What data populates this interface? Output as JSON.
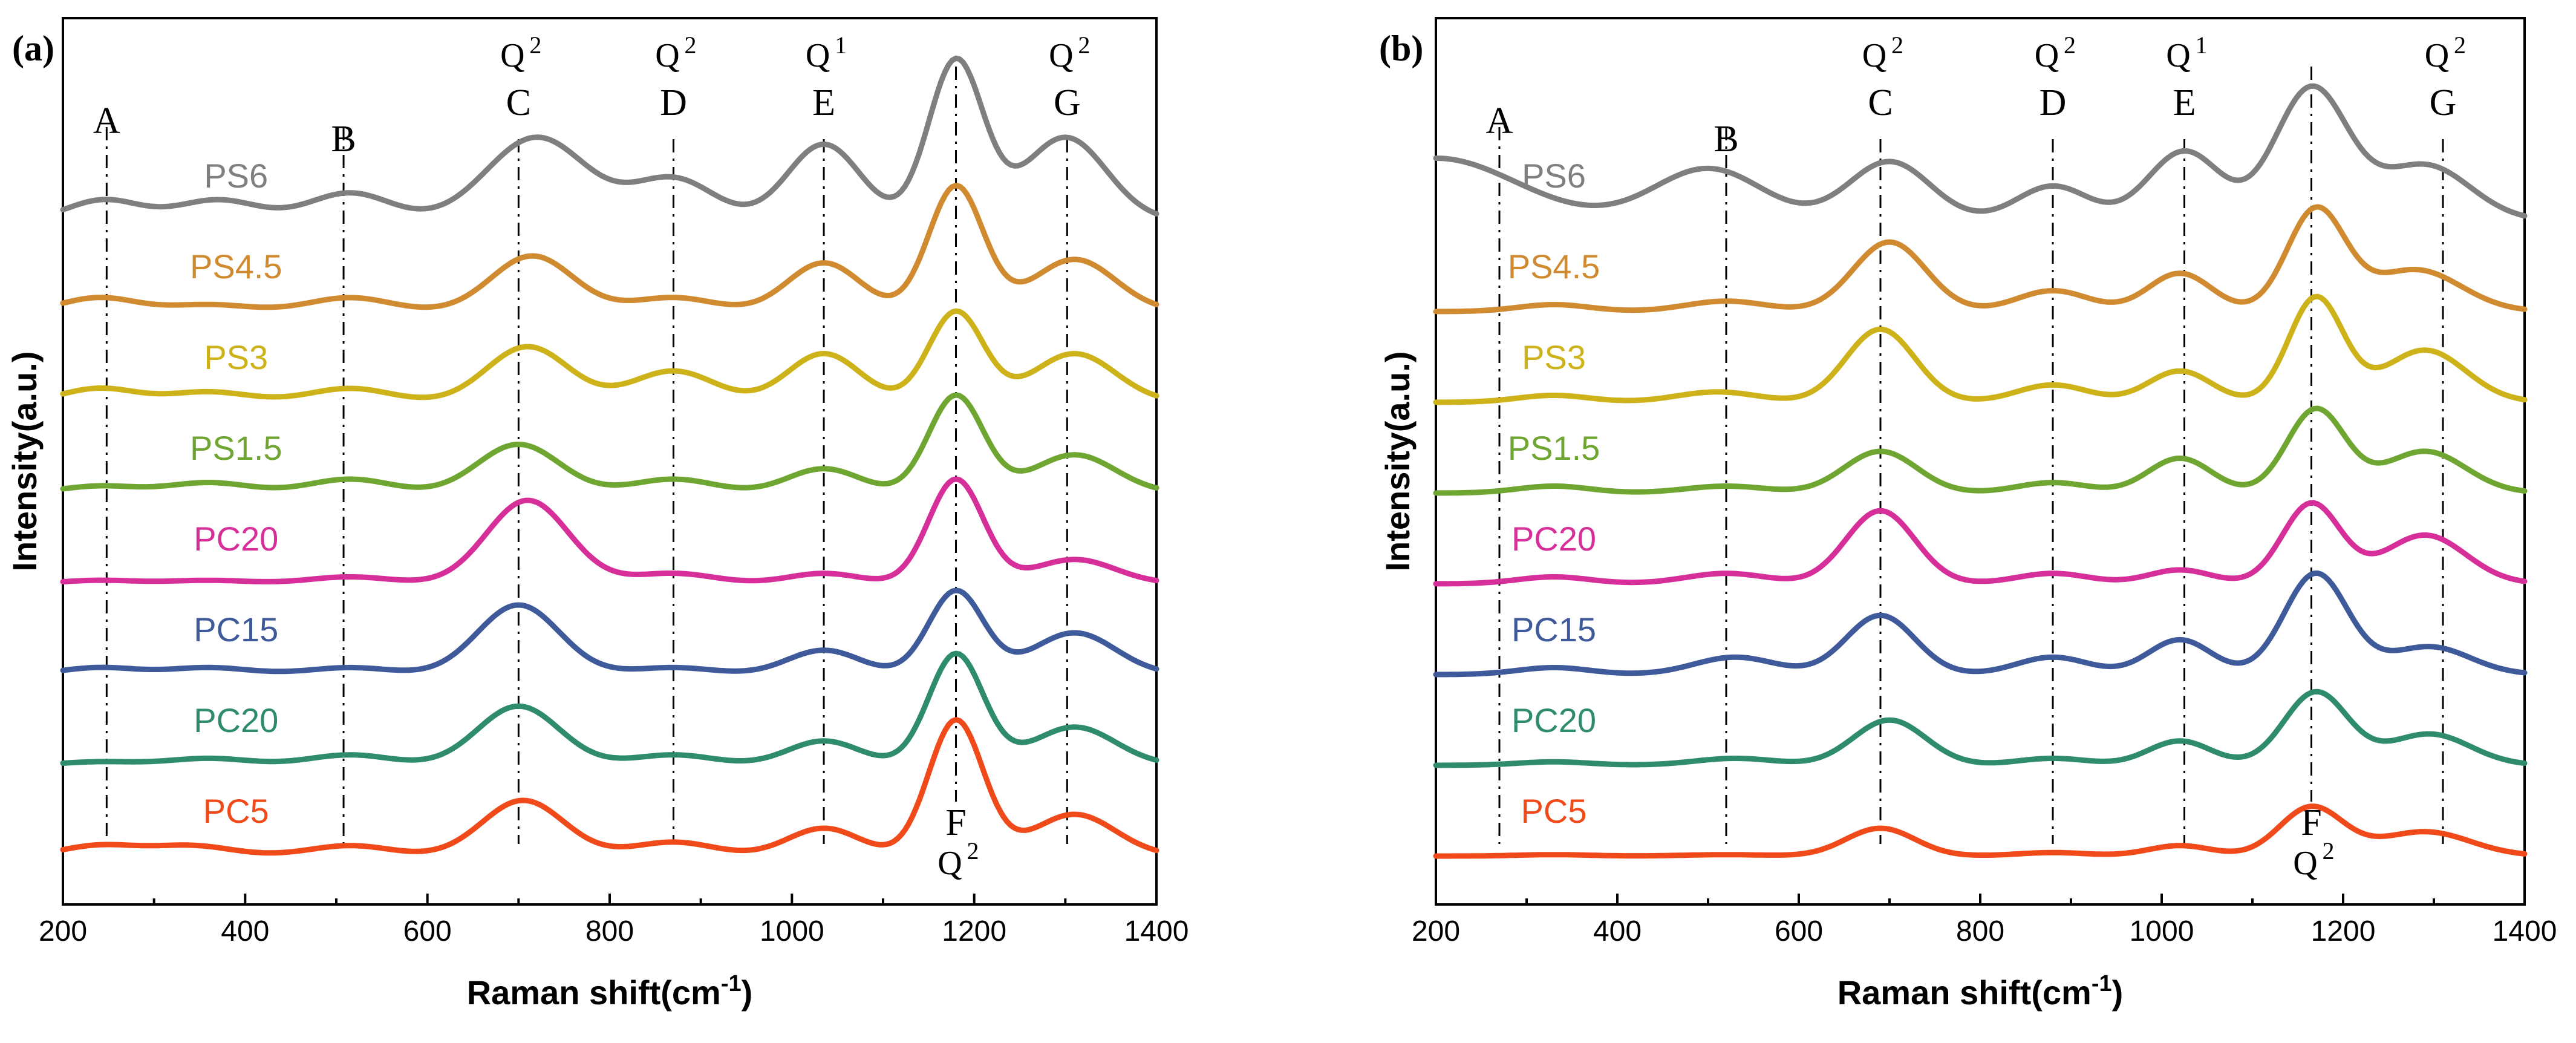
{
  "chart_data": [
    {
      "panel_label": "(a)",
      "type": "line",
      "xlabel": "Raman shift(cm",
      "xlabel_sup": "-1",
      "xlabel_tail": ")",
      "ylabel": "Intensity(a.u.)",
      "xlim": [
        200,
        1400
      ],
      "x_ticks": [
        "200",
        "400",
        "600",
        "800",
        "1000",
        "1200",
        "1400"
      ],
      "y_ticks_shown": false,
      "reference_peaks": [
        {
          "letter": "A",
          "q": "",
          "sup": "",
          "x": 248
        },
        {
          "letter": "B",
          "q": "",
          "sup": "",
          "x": 508
        },
        {
          "letter": "C",
          "q": "Q",
          "sup": "2",
          "x": 700
        },
        {
          "letter": "D",
          "q": "Q",
          "sup": "2",
          "x": 870
        },
        {
          "letter": "E",
          "q": "Q",
          "sup": "1",
          "x": 1035
        },
        {
          "letter": "F",
          "q": "Q",
          "sup": "2",
          "x": 1180,
          "label_below": true
        },
        {
          "letter": "G",
          "q": "Q",
          "sup": "2",
          "x": 1302
        }
      ],
      "series": [
        {
          "name": "PS6",
          "color": "#7f7f7f",
          "baseline": 7.0,
          "label_x": 390,
          "peaks": [
            [
              245,
              0.3,
              40
            ],
            [
              370,
              0.3,
              45
            ],
            [
              515,
              0.4,
              45
            ],
            [
              720,
              1.2,
              55
            ],
            [
              870,
              0.6,
              45
            ],
            [
              1035,
              1.1,
              40
            ],
            [
              1180,
              2.3,
              30
            ],
            [
              1300,
              1.2,
              45
            ]
          ]
        },
        {
          "name": "PS4.5",
          "color": "#d08a30",
          "baseline": 6.0,
          "label_x": 390,
          "peaks": [
            [
              240,
              0.2,
              40
            ],
            [
              360,
              0.1,
              45
            ],
            [
              515,
              0.2,
              45
            ],
            [
              715,
              0.8,
              45
            ],
            [
              870,
              0.2,
              45
            ],
            [
              1035,
              0.7,
              40
            ],
            [
              1180,
              1.8,
              30
            ],
            [
              1310,
              0.75,
              45
            ]
          ]
        },
        {
          "name": "PS3",
          "color": "#cdb21a",
          "baseline": 5.0,
          "label_x": 390,
          "peaks": [
            [
              240,
              0.2,
              40
            ],
            [
              360,
              0.15,
              45
            ],
            [
              515,
              0.2,
              45
            ],
            [
              710,
              0.8,
              45
            ],
            [
              870,
              0.45,
              45
            ],
            [
              1035,
              0.7,
              40
            ],
            [
              1180,
              1.3,
              30
            ],
            [
              1310,
              0.7,
              45
            ]
          ]
        },
        {
          "name": "PS1.5",
          "color": "#6fa531",
          "baseline": 4.0,
          "label_x": 390,
          "peaks": [
            [
              240,
              0.1,
              40
            ],
            [
              360,
              0.15,
              45
            ],
            [
              515,
              0.2,
              45
            ],
            [
              700,
              0.7,
              45
            ],
            [
              870,
              0.2,
              45
            ],
            [
              1035,
              0.35,
              40
            ],
            [
              1180,
              1.4,
              30
            ],
            [
              1310,
              0.55,
              45
            ]
          ]
        },
        {
          "name": "PC20",
          "color": "#d72f9a",
          "baseline": 3.0,
          "label_x": 390,
          "peaks": [
            [
              240,
              0.05,
              40
            ],
            [
              360,
              0.05,
              45
            ],
            [
              515,
              0.1,
              45
            ],
            [
              710,
              1.2,
              45
            ],
            [
              870,
              0.15,
              45
            ],
            [
              1035,
              0.15,
              40
            ],
            [
              1180,
              1.5,
              30
            ],
            [
              1310,
              0.35,
              45
            ]
          ]
        },
        {
          "name": "PC15",
          "color": "#3f5a9a",
          "baseline": 2.0,
          "label_x": 390,
          "peaks": [
            [
              240,
              0.1,
              40
            ],
            [
              360,
              0.1,
              45
            ],
            [
              515,
              0.1,
              45
            ],
            [
              700,
              1.0,
              45
            ],
            [
              870,
              0.1,
              45
            ],
            [
              1035,
              0.35,
              40
            ],
            [
              1180,
              1.2,
              30
            ],
            [
              1310,
              0.6,
              45
            ]
          ]
        },
        {
          "name": "PC20",
          "color": "#2e8b6b",
          "baseline": 1.0,
          "label_x": 390,
          "peaks": [
            [
              240,
              0.05,
              40
            ],
            [
              360,
              0.1,
              45
            ],
            [
              515,
              0.15,
              45
            ],
            [
              700,
              0.85,
              45
            ],
            [
              870,
              0.15,
              45
            ],
            [
              1035,
              0.35,
              40
            ],
            [
              1180,
              1.6,
              30
            ],
            [
              1310,
              0.55,
              45
            ]
          ]
        },
        {
          "name": "PC5",
          "color": "#f04a1a",
          "baseline": 0.0,
          "label_x": 390,
          "peaks": [
            [
              240,
              0.15,
              40
            ],
            [
              340,
              0.15,
              45
            ],
            [
              515,
              0.15,
              45
            ],
            [
              705,
              0.8,
              45
            ],
            [
              870,
              0.2,
              45
            ],
            [
              1035,
              0.4,
              40
            ],
            [
              1180,
              1.95,
              30
            ],
            [
              1310,
              0.6,
              45
            ]
          ]
        }
      ]
    },
    {
      "panel_label": "(b)",
      "type": "line",
      "xlabel": "Raman shift(cm",
      "xlabel_sup": "-1",
      "xlabel_tail": ")",
      "ylabel": "Intensity(a.u.)",
      "xlim": [
        200,
        1400
      ],
      "x_ticks": [
        "200",
        "400",
        "600",
        "800",
        "1000",
        "1200",
        "1400"
      ],
      "y_ticks_shown": false,
      "reference_peaks": [
        {
          "letter": "A",
          "q": "",
          "sup": "",
          "x": 270
        },
        {
          "letter": "B",
          "q": "",
          "sup": "",
          "x": 520
        },
        {
          "letter": "C",
          "q": "Q",
          "sup": "2",
          "x": 690
        },
        {
          "letter": "D",
          "q": "Q",
          "sup": "2",
          "x": 880
        },
        {
          "letter": "E",
          "q": "Q",
          "sup": "1",
          "x": 1025
        },
        {
          "letter": "F",
          "q": "Q",
          "sup": "2",
          "x": 1165,
          "label_below": true
        },
        {
          "letter": "G",
          "q": "Q",
          "sup": "2",
          "x": 1310
        }
      ],
      "series": [
        {
          "name": "PS6",
          "color": "#7f7f7f",
          "baseline": 7.0,
          "label_x": 330,
          "peaks": [
            [
              200,
              0.9,
              90
            ],
            [
              500,
              0.75,
              60
            ],
            [
              700,
              0.85,
              45
            ],
            [
              880,
              0.5,
              40
            ],
            [
              1025,
              1.0,
              40
            ],
            [
              1165,
              1.9,
              40
            ],
            [
              1290,
              0.8,
              50
            ]
          ]
        },
        {
          "name": "PS4.5",
          "color": "#d08a30",
          "baseline": 6.0,
          "label_x": 330,
          "peaks": [
            [
              330,
              0.1,
              40
            ],
            [
              520,
              0.15,
              45
            ],
            [
              700,
              1.0,
              40
            ],
            [
              880,
              0.3,
              40
            ],
            [
              1020,
              0.55,
              35
            ],
            [
              1170,
              1.45,
              32
            ],
            [
              1280,
              0.6,
              50
            ]
          ]
        },
        {
          "name": "PS3",
          "color": "#cdb21a",
          "baseline": 5.0,
          "label_x": 330,
          "peaks": [
            [
              330,
              0.1,
              40
            ],
            [
              510,
              0.15,
              45
            ],
            [
              690,
              1.05,
              38
            ],
            [
              880,
              0.25,
              40
            ],
            [
              1020,
              0.45,
              35
            ],
            [
              1170,
              1.5,
              30
            ],
            [
              1290,
              0.75,
              45
            ]
          ]
        },
        {
          "name": "PS1.5",
          "color": "#6fa531",
          "baseline": 4.0,
          "label_x": 330,
          "peaks": [
            [
              330,
              0.1,
              40
            ],
            [
              520,
              0.1,
              45
            ],
            [
              690,
              0.6,
              40
            ],
            [
              880,
              0.15,
              40
            ],
            [
              1020,
              0.5,
              35
            ],
            [
              1170,
              1.2,
              32
            ],
            [
              1290,
              0.6,
              45
            ]
          ]
        },
        {
          "name": "PC20",
          "color": "#d72f9a",
          "baseline": 3.0,
          "label_x": 330,
          "peaks": [
            [
              330,
              0.1,
              40
            ],
            [
              520,
              0.15,
              45
            ],
            [
              690,
              1.05,
              38
            ],
            [
              880,
              0.15,
              40
            ],
            [
              1020,
              0.2,
              35
            ],
            [
              1165,
              1.15,
              32
            ],
            [
              1290,
              0.7,
              45
            ]
          ]
        },
        {
          "name": "PC15",
          "color": "#3f5a9a",
          "baseline": 2.0,
          "label_x": 330,
          "peaks": [
            [
              330,
              0.1,
              40
            ],
            [
              530,
              0.25,
              45
            ],
            [
              690,
              0.85,
              38
            ],
            [
              880,
              0.25,
              40
            ],
            [
              1020,
              0.5,
              35
            ],
            [
              1170,
              1.45,
              35
            ],
            [
              1295,
              0.4,
              45
            ]
          ]
        },
        {
          "name": "PC20",
          "color": "#2e8b6b",
          "baseline": 1.0,
          "label_x": 330,
          "peaks": [
            [
              330,
              0.05,
              40
            ],
            [
              530,
              0.1,
              45
            ],
            [
              700,
              0.65,
              40
            ],
            [
              880,
              0.1,
              40
            ],
            [
              1020,
              0.35,
              35
            ],
            [
              1170,
              1.05,
              35
            ],
            [
              1295,
              0.45,
              45
            ]
          ]
        },
        {
          "name": "PC5",
          "color": "#f04a1a",
          "baseline": 0.0,
          "label_x": 330,
          "peaks": [
            [
              330,
              0.02,
              40
            ],
            [
              520,
              0.02,
              45
            ],
            [
              690,
              0.4,
              38
            ],
            [
              880,
              0.05,
              40
            ],
            [
              1020,
              0.15,
              35
            ],
            [
              1165,
              0.7,
              35
            ],
            [
              1290,
              0.35,
              50
            ]
          ]
        }
      ]
    }
  ]
}
